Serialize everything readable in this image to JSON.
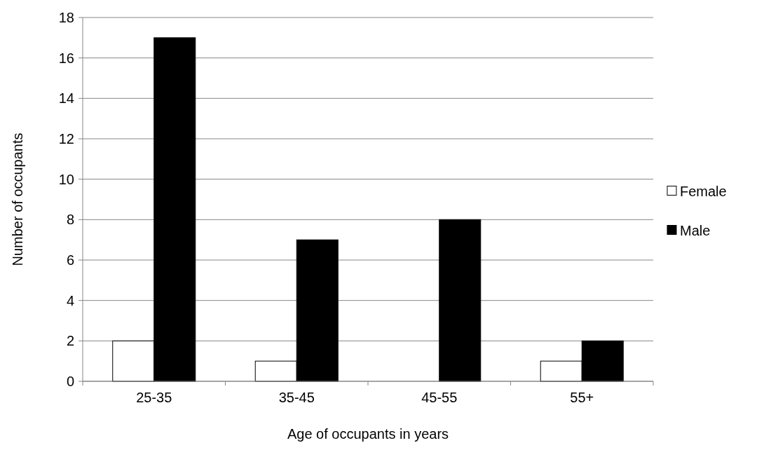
{
  "chart_data": {
    "type": "bar",
    "xlabel": "Age of occupants in years",
    "ylabel": "Number of occupants",
    "categories": [
      "25-35",
      "35-45",
      "45-55",
      "55+"
    ],
    "series": [
      {
        "name": "Female",
        "color": "#ffffff",
        "values": [
          2,
          1,
          0,
          1
        ]
      },
      {
        "name": "Male",
        "color": "#000000",
        "values": [
          17,
          7,
          8,
          2
        ]
      }
    ],
    "ylim": [
      0,
      18
    ],
    "yticks": [
      0,
      2,
      4,
      6,
      8,
      10,
      12,
      14,
      16,
      18
    ],
    "grid": "y",
    "legend": "right"
  }
}
